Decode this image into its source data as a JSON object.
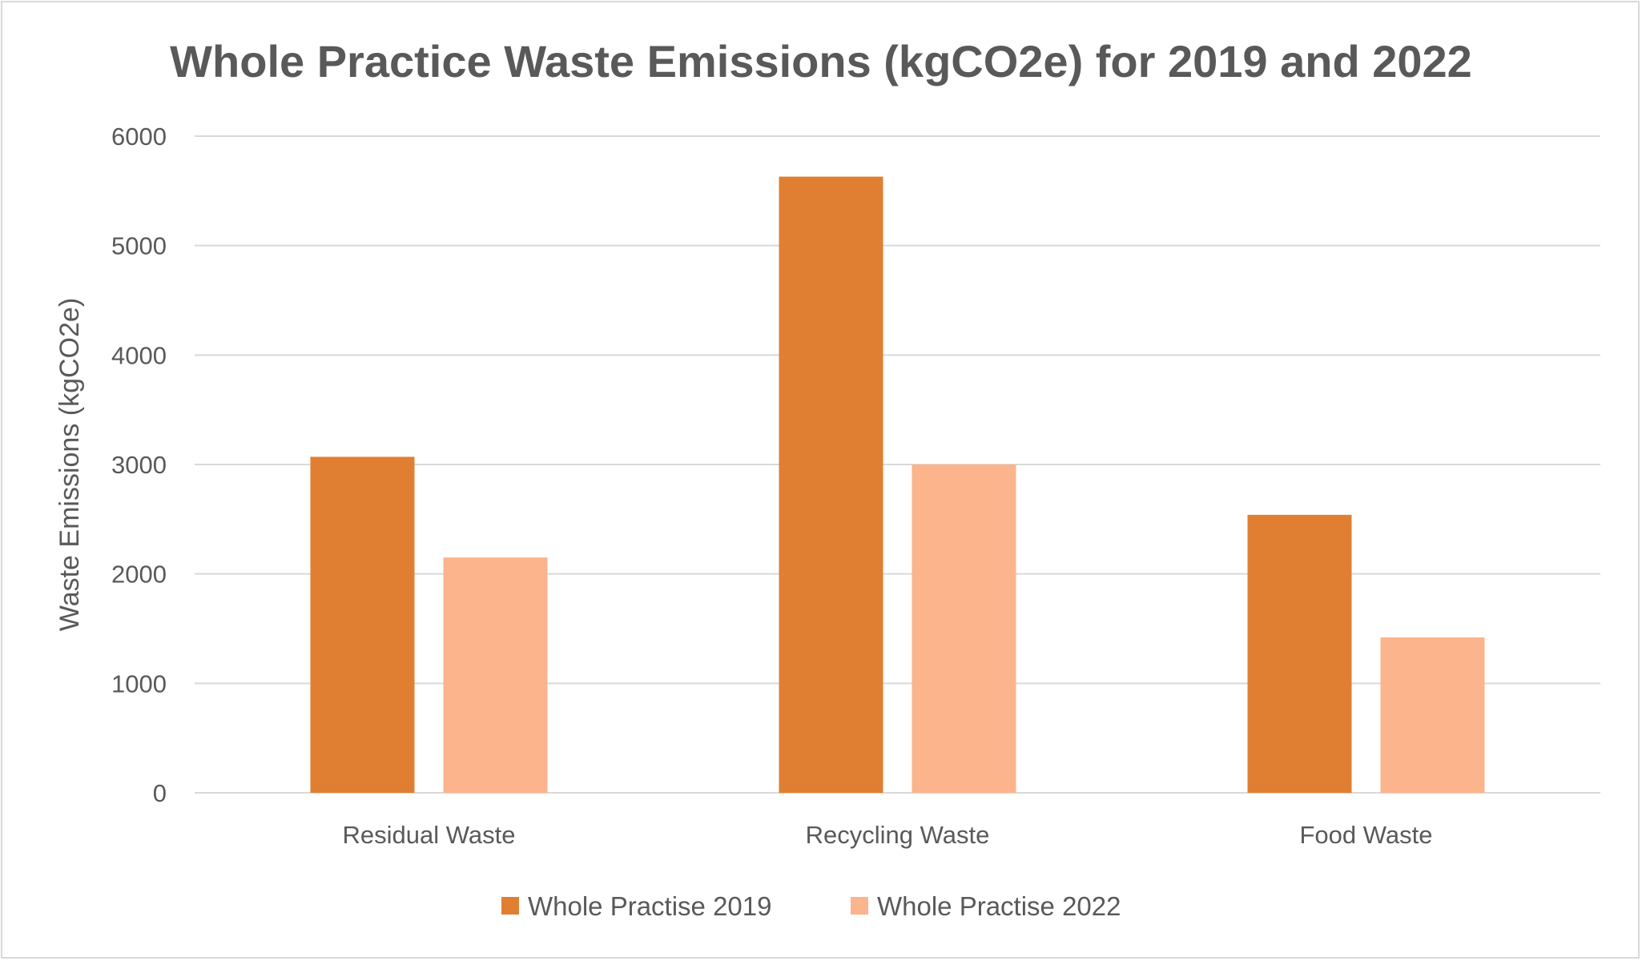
{
  "chart_data": {
    "type": "bar",
    "title": "Whole Practice Waste Emissions (kgCO2e) for 2019 and 2022",
    "xlabel": "",
    "ylabel": "Waste Emissions (kgCO2e)",
    "ylim": [
      0,
      6000
    ],
    "yticks": [
      0,
      1000,
      2000,
      3000,
      4000,
      5000,
      6000
    ],
    "grid": true,
    "legend_position": "bottom",
    "categories": [
      "Residual Waste",
      "Recycling Waste",
      "Food Waste"
    ],
    "series": [
      {
        "name": "Whole Practise 2019",
        "color": "#E07F31",
        "values": [
          3070,
          5630,
          2540
        ]
      },
      {
        "name": "Whole Practise 2022",
        "color": "#FBB48C",
        "values": [
          2150,
          3000,
          1420
        ]
      }
    ]
  }
}
